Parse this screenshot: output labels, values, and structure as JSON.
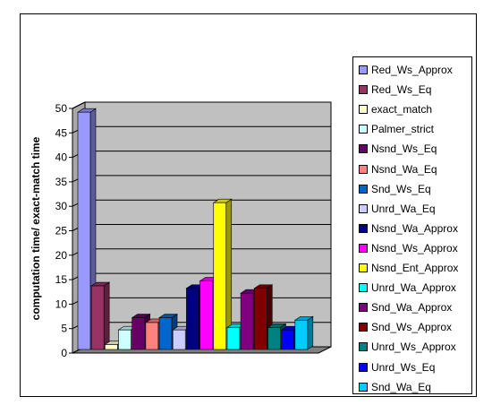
{
  "chart_data": {
    "type": "bar",
    "title": "",
    "xlabel": "",
    "ylabel": "computation time/ exact-match time",
    "ylim": [
      0,
      50
    ],
    "yticks": [
      0,
      5,
      10,
      15,
      20,
      25,
      30,
      35,
      40,
      45,
      50
    ],
    "grid": true,
    "legend_position": "right",
    "series": [
      {
        "name": "Red_Ws_Approx",
        "value": 48.5,
        "color": "#9999ff"
      },
      {
        "name": "Red_Ws_Eq",
        "value": 13,
        "color": "#993366"
      },
      {
        "name": "exact_match",
        "value": 1,
        "color": "#ffffcc"
      },
      {
        "name": "Palmer_strict",
        "value": 4,
        "color": "#ccffff"
      },
      {
        "name": "Nsnd_Ws_Eq",
        "value": 6.5,
        "color": "#660066"
      },
      {
        "name": "Nsnd_Wa_Eq",
        "value": 5.5,
        "color": "#ff8080"
      },
      {
        "name": "Snd_Ws_Eq",
        "value": 6.5,
        "color": "#0066cc"
      },
      {
        "name": "Unrd_Wa_Eq",
        "value": 4,
        "color": "#ccccff"
      },
      {
        "name": "Nsnd_Wa_Approx",
        "value": 12.5,
        "color": "#000080"
      },
      {
        "name": "Nsnd_Ws_Approx",
        "value": 14,
        "color": "#ff00ff"
      },
      {
        "name": "Nsnd_Ent_Approx",
        "value": 30,
        "color": "#ffff00"
      },
      {
        "name": "Unrd_Wa_Approx",
        "value": 4.5,
        "color": "#00ffff"
      },
      {
        "name": "Snd_Wa_Approx",
        "value": 11.5,
        "color": "#800080"
      },
      {
        "name": "Snd_Ws_Approx",
        "value": 12.5,
        "color": "#800000"
      },
      {
        "name": "Unrd_Ws_Approx",
        "value": 4.5,
        "color": "#008080"
      },
      {
        "name": "Unrd_Ws_Eq",
        "value": 4,
        "color": "#0000ff"
      },
      {
        "name": "Snd_Wa_Eq",
        "value": 6,
        "color": "#00ccff"
      }
    ]
  }
}
